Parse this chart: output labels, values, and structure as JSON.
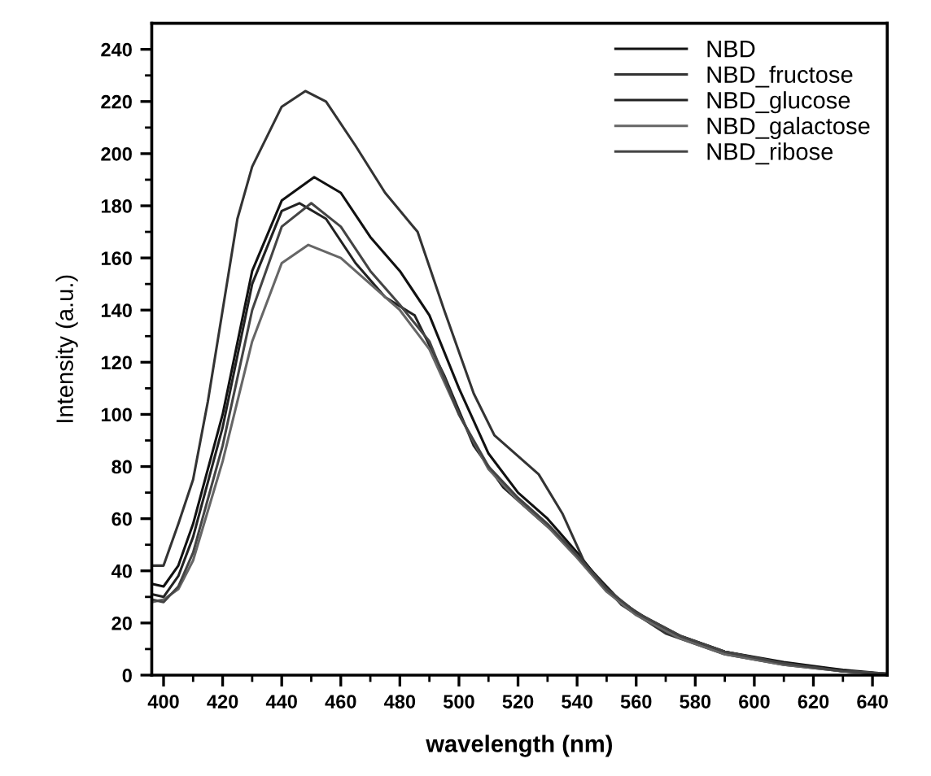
{
  "chart_data": {
    "type": "line",
    "xlabel": "wavelength (nm)",
    "ylabel": "Intensity (a.u.)",
    "xlim": [
      396,
      645
    ],
    "ylim": [
      0,
      250
    ],
    "xticks": [
      400,
      {
        "value": 410,
        "label": null
      },
      420,
      {
        "value": 430,
        "label": null
      },
      440,
      {
        "value": 450,
        "label": null
      },
      460,
      {
        "value": 470,
        "label": null
      },
      480,
      {
        "value": 490,
        "label": null
      },
      500,
      {
        "value": 510,
        "label": null
      },
      520,
      {
        "value": 530,
        "label": null
      },
      540,
      {
        "value": 550,
        "label": null
      },
      560,
      {
        "value": 570,
        "label": null
      },
      580,
      {
        "value": 590,
        "label": null
      },
      600,
      {
        "value": 610,
        "label": null
      },
      620,
      {
        "value": 630,
        "label": null
      },
      640
    ],
    "yticks": [
      0,
      {
        "value": 10,
        "label": null
      },
      20,
      {
        "value": 30,
        "label": null
      },
      40,
      {
        "value": 50,
        "label": null
      },
      60,
      {
        "value": 70,
        "label": null
      },
      80,
      {
        "value": 90,
        "label": null
      },
      100,
      {
        "value": 110,
        "label": null
      },
      120,
      {
        "value": 130,
        "label": null
      },
      140,
      {
        "value": 150,
        "label": null
      },
      160,
      {
        "value": 170,
        "label": null
      },
      180,
      {
        "value": 190,
        "label": null
      },
      200,
      {
        "value": 210,
        "label": null
      },
      220,
      {
        "value": 230,
        "label": null
      },
      240
    ],
    "grid": false,
    "legend": "top right",
    "marker": "none",
    "line_style": "solid",
    "series": [
      {
        "name": "NBD",
        "color": "#111111",
        "x": [
          396,
          400,
          405,
          410,
          420,
          430,
          440,
          451,
          460,
          470,
          480,
          490,
          500,
          510,
          520,
          530,
          540,
          550,
          560,
          575,
          590,
          610,
          630,
          645
        ],
        "values": [
          35,
          34,
          42,
          58,
          100,
          155,
          182,
          191,
          185,
          168,
          155,
          138,
          110,
          85,
          70,
          60,
          47,
          33,
          24,
          15,
          9,
          5,
          2,
          0.5
        ]
      },
      {
        "name": "NBD_fructose",
        "color": "#333333",
        "x": [
          396,
          400,
          405,
          410,
          415,
          420,
          425,
          430,
          440,
          448,
          455,
          465,
          475,
          486,
          495,
          505,
          512,
          527,
          535,
          543,
          555,
          570,
          590,
          610,
          630,
          645
        ],
        "values": [
          42,
          42,
          58,
          75,
          105,
          140,
          175,
          195,
          218,
          224,
          220,
          203,
          185,
          170,
          140,
          108,
          92,
          77,
          62,
          42,
          27,
          16,
          8,
          4,
          1.5,
          0.5
        ]
      },
      {
        "name": "NBD_glucose",
        "color": "#222222",
        "x": [
          396,
          400,
          405,
          410,
          420,
          430,
          440,
          446,
          455,
          465,
          475,
          485,
          495,
          505,
          515,
          525,
          535,
          545,
          555,
          570,
          590,
          610,
          630,
          645
        ],
        "values": [
          31,
          30,
          38,
          53,
          95,
          150,
          178,
          181,
          175,
          158,
          145,
          138,
          115,
          88,
          72,
          62,
          52,
          40,
          28,
          17,
          9,
          4.5,
          1.5,
          0.5
        ]
      },
      {
        "name": "NBD_galactose",
        "color": "#666666",
        "x": [
          396,
          400,
          405,
          410,
          420,
          430,
          440,
          449,
          460,
          470,
          480,
          490,
          500,
          510,
          520,
          530,
          540,
          550,
          560,
          575,
          590,
          610,
          630,
          645
        ],
        "values": [
          28,
          29,
          33,
          44,
          82,
          128,
          158,
          165,
          160,
          150,
          140,
          125,
          100,
          79,
          67,
          57,
          45,
          32,
          23,
          14,
          8,
          4,
          1.5,
          0.5
        ]
      },
      {
        "name": "NBD_ribose",
        "color": "#444444",
        "x": [
          396,
          400,
          405,
          410,
          420,
          430,
          440,
          450,
          460,
          470,
          480,
          490,
          500,
          510,
          520,
          530,
          540,
          550,
          560,
          575,
          590,
          610,
          630,
          645
        ],
        "values": [
          29,
          28,
          34,
          47,
          88,
          140,
          172,
          181,
          172,
          155,
          142,
          128,
          100,
          80,
          68,
          58,
          46,
          33,
          24,
          15,
          9,
          4.5,
          1.5,
          0.5
        ]
      }
    ]
  }
}
